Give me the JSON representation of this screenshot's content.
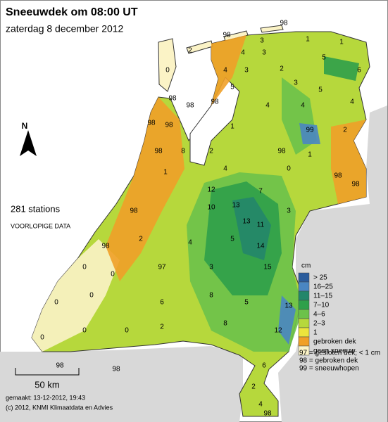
{
  "header": {
    "title": "Sneeuwdek om 08:00 UT",
    "subtitle": "zaterdag 8 december 2012"
  },
  "north": "N",
  "stations": {
    "count_label": "281 stations",
    "note": "VOORLOPIGE DATA",
    "values": [
      98,
      98,
      3,
      1,
      1,
      2,
      4,
      3,
      5,
      6,
      4,
      3,
      2,
      0,
      5,
      3,
      5,
      98,
      98,
      98,
      4,
      4,
      4,
      98,
      98,
      1,
      99,
      2,
      98,
      8,
      2,
      98,
      1,
      1,
      4,
      0,
      98,
      98,
      12,
      13,
      7,
      10,
      13,
      11,
      3,
      98,
      98,
      2,
      4,
      5,
      14,
      0,
      0,
      97,
      3,
      15,
      0,
      0,
      6,
      8,
      5,
      13,
      0,
      0,
      0,
      2,
      8,
      12,
      98,
      98,
      6,
      2,
      4,
      98
    ]
  },
  "legend": {
    "unit": "cm",
    "items": [
      {
        "label": "> 25",
        "color": "#2b5c9c"
      },
      {
        "label": "16–25",
        "color": "#4a86c2"
      },
      {
        "label": "11–15",
        "color": "#23866a"
      },
      {
        "label": "7–10",
        "color": "#2fa04a"
      },
      {
        "label": "4–6",
        "color": "#6cc24a"
      },
      {
        "label": "2–3",
        "color": "#b6d83c"
      },
      {
        "label": "1",
        "color": "#ece43c"
      },
      {
        "label": "gebroken dek",
        "color": "#f0a028"
      },
      {
        "label": "geen sneeuw",
        "color": "#fbf3c6"
      }
    ],
    "codes": [
      "97 = gesloten dek; < 1 cm",
      "98 = gebroken dek",
      "99 = sneeuwhopen"
    ]
  },
  "scale": "50 km",
  "footer": {
    "made": "gemaakt: 13-12-2012, 19:43",
    "copyright": "(c) 2012, KNMI Klimaatdata en Advies"
  }
}
